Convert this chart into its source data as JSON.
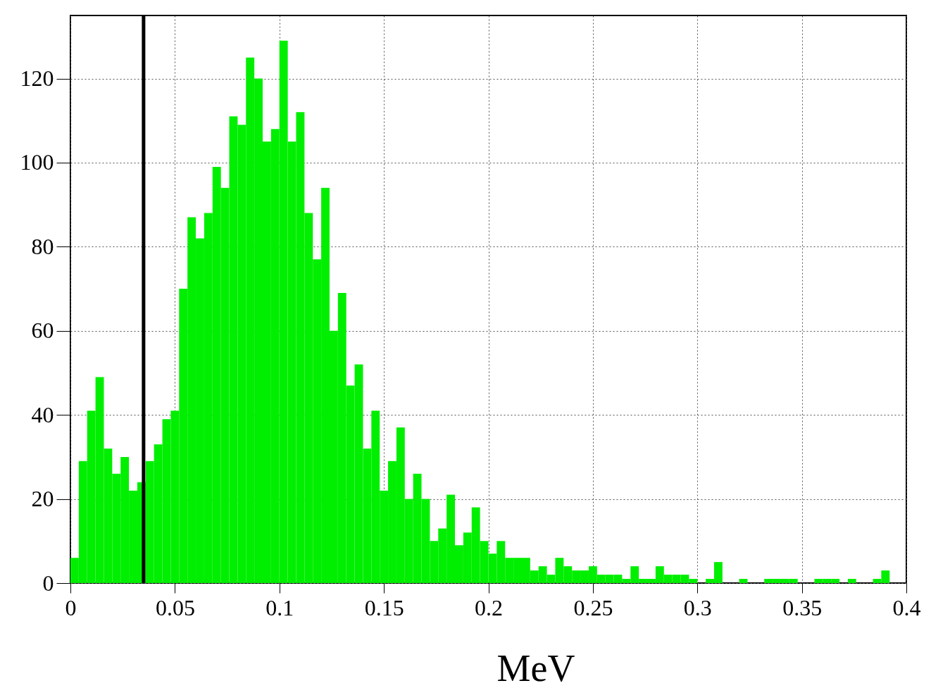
{
  "chart_data": {
    "type": "histogram",
    "xlabel": "MeV",
    "color": "#00ee00",
    "bins": [
      0,
      0.004,
      0.008,
      0.012,
      0.016,
      0.02,
      0.024,
      0.028,
      0.032,
      0.036,
      0.04,
      0.044,
      0.048,
      0.052,
      0.056,
      0.06,
      0.064,
      0.068,
      0.072,
      0.076,
      0.08,
      0.084,
      0.088,
      0.092,
      0.096,
      0.1,
      0.104,
      0.108,
      0.112,
      0.116,
      0.12,
      0.124,
      0.128,
      0.132,
      0.136,
      0.14,
      0.144,
      0.148,
      0.152,
      0.156,
      0.16,
      0.164,
      0.168,
      0.172,
      0.176,
      0.18,
      0.184,
      0.188,
      0.192,
      0.196,
      0.2,
      0.204,
      0.208,
      0.212,
      0.216,
      0.22,
      0.224,
      0.228,
      0.232,
      0.236,
      0.24,
      0.244,
      0.248,
      0.252,
      0.256,
      0.26,
      0.264,
      0.268,
      0.272,
      0.276,
      0.28,
      0.284,
      0.288,
      0.292,
      0.296,
      0.3,
      0.304,
      0.308,
      0.312,
      0.316,
      0.32,
      0.324,
      0.328,
      0.332,
      0.336,
      0.34,
      0.344,
      0.348,
      0.352,
      0.356,
      0.36,
      0.364,
      0.368,
      0.372,
      0.376,
      0.38,
      0.384,
      0.388,
      0.392,
      0.396,
      0.4
    ],
    "values": [
      6,
      29,
      41,
      49,
      32,
      26,
      30,
      22,
      24,
      29,
      33,
      39,
      41,
      70,
      87,
      82,
      88,
      99,
      94,
      111,
      109,
      125,
      120,
      105,
      108,
      129,
      105,
      112,
      88,
      77,
      94,
      60,
      69,
      47,
      52,
      32,
      41,
      22,
      29,
      37,
      20,
      26,
      20,
      10,
      13,
      21,
      9,
      12,
      18,
      10,
      7,
      10,
      6,
      6,
      6,
      3,
      4,
      2,
      6,
      4,
      3,
      3,
      4,
      2,
      2,
      2,
      1,
      4,
      1,
      1,
      4,
      2,
      2,
      2,
      1,
      0,
      1,
      5,
      0,
      0,
      1,
      0,
      0,
      1,
      1,
      1,
      1,
      0,
      0,
      1,
      1,
      1,
      0,
      1,
      0,
      0,
      1,
      3,
      0,
      0
    ],
    "xlim": [
      0,
      0.4
    ],
    "xticks": [
      0,
      0.05,
      0.1,
      0.15,
      0.2,
      0.25,
      0.3,
      0.35,
      0.4
    ],
    "ylim": [
      0,
      135
    ],
    "yticks": [
      0,
      20,
      40,
      60,
      80,
      100,
      120
    ],
    "grid": true,
    "ref_lines": [
      {
        "axis": "x",
        "value": 0.035,
        "color": "#000000"
      }
    ]
  }
}
